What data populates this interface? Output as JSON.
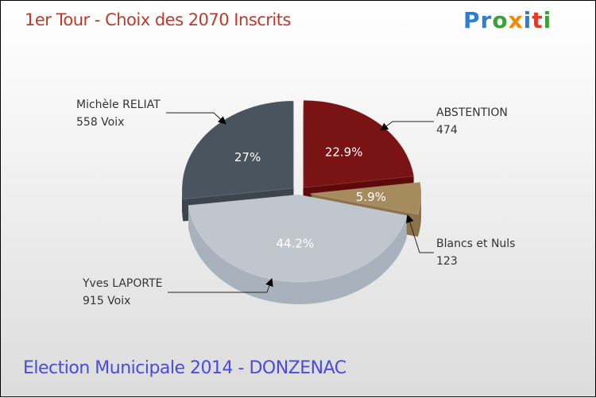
{
  "title": "1er Tour - Choix des 2070 Inscrits",
  "subtitle": "Election Municipale 2014 - DONZENAC",
  "logo": "Proxiti",
  "chart_data": {
    "type": "pie",
    "title": "1er Tour - Choix des 2070 Inscrits",
    "slices": [
      {
        "name": "ABSTENTION",
        "value": 474,
        "value_label": "474",
        "percent": 22.9,
        "percent_label": "22.9%",
        "color": "#7a1414",
        "side": "#5e0a0a"
      },
      {
        "name": "Blancs et Nuls",
        "value": 123,
        "value_label": "123",
        "percent": 5.9,
        "percent_label": "5.9%",
        "color": "#a68b5f",
        "side": "#8c734c"
      },
      {
        "name": "Yves LAPORTE",
        "value": 915,
        "value_label": "915 Voix",
        "percent": 44.2,
        "percent_label": "44.2%",
        "color": "#bfc6ce",
        "side": "#a9b2bc"
      },
      {
        "name": "Michèle RELIAT",
        "value": 558,
        "value_label": "558 Voix",
        "percent": 27,
        "percent_label": "27%",
        "color": "#4a545e",
        "side": "#3c444d"
      }
    ]
  }
}
